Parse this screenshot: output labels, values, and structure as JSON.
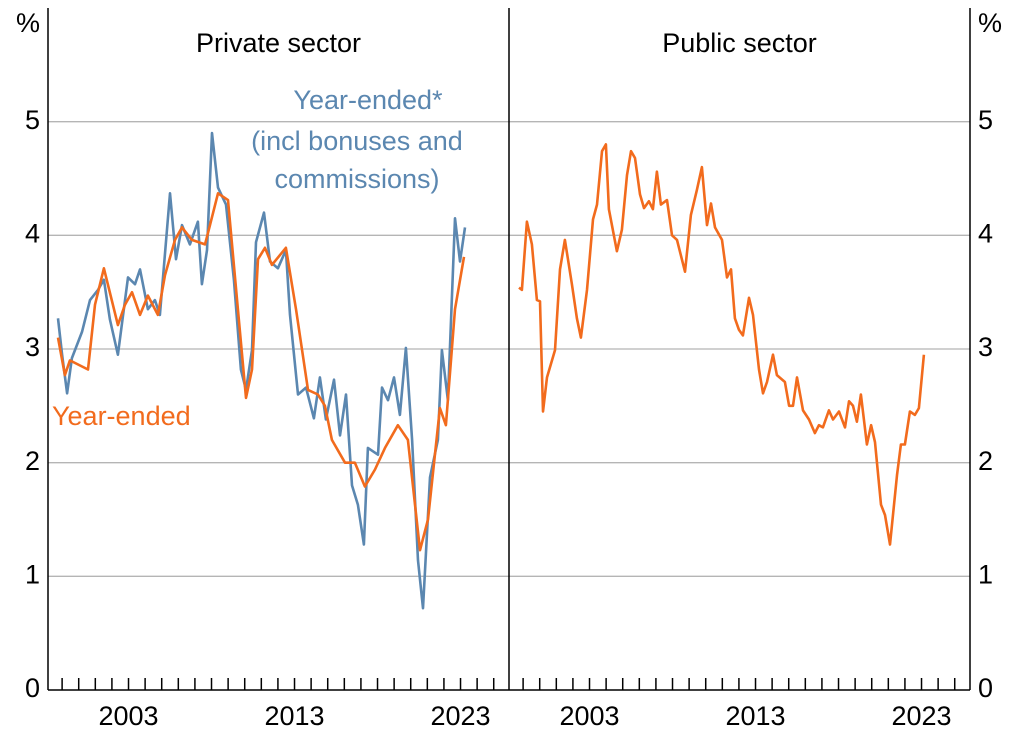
{
  "chart_data": [
    {
      "type": "line",
      "title": "Private sector",
      "y_label": "%",
      "yaxis_side": "left",
      "grid": true,
      "xlim": [
        1998.15,
        2025.92
      ],
      "xticks": [
        2003,
        2013,
        2023
      ],
      "xminorticks": [
        1999,
        2000,
        2001,
        2002,
        2003,
        2004,
        2005,
        2006,
        2007,
        2008,
        2009,
        2010,
        2011,
        2012,
        2013,
        2014,
        2015,
        2016,
        2017,
        2018,
        2019,
        2020,
        2021,
        2022,
        2023,
        2024,
        2025
      ],
      "ylim": [
        0,
        6
      ],
      "yticks": [
        0,
        1,
        2,
        3,
        4,
        5
      ],
      "annotations": [
        "(incl bonuses and",
        "commissions)"
      ],
      "series": [
        {
          "name": "Year-ended*",
          "color": "#5b87b0",
          "x": [
            1998.75,
            1999.0,
            1999.3,
            1999.59,
            2000.2,
            2000.68,
            2001.16,
            2001.52,
            2001.88,
            2002.36,
            2002.97,
            2003.39,
            2003.69,
            2004.17,
            2004.59,
            2004.89,
            2005.5,
            2005.86,
            2006.22,
            2006.7,
            2007.18,
            2007.42,
            2007.73,
            2008.03,
            2008.39,
            2008.87,
            2009.35,
            2009.77,
            2010.08,
            2010.44,
            2010.68,
            2011.16,
            2011.52,
            2012.0,
            2012.48,
            2012.73,
            2013.21,
            2013.69,
            2014.17,
            2014.53,
            2014.89,
            2015.38,
            2015.74,
            2016.1,
            2016.46,
            2016.82,
            2017.18,
            2017.42,
            2018.03,
            2018.27,
            2018.63,
            2018.99,
            2019.35,
            2019.71,
            2020.08,
            2020.44,
            2020.74,
            2021.16,
            2021.64,
            2021.88,
            2022.24,
            2022.67,
            2022.97,
            2023.27
          ],
          "values": [
            3.27,
            2.95,
            2.61,
            2.92,
            3.15,
            3.43,
            3.52,
            3.61,
            3.26,
            2.95,
            3.63,
            3.57,
            3.7,
            3.35,
            3.43,
            3.3,
            4.37,
            3.79,
            4.09,
            3.92,
            4.12,
            3.57,
            3.87,
            4.9,
            4.42,
            4.27,
            3.61,
            2.82,
            2.64,
            2.99,
            3.94,
            4.2,
            3.77,
            3.71,
            3.87,
            3.3,
            2.6,
            2.66,
            2.39,
            2.75,
            2.38,
            2.73,
            2.24,
            2.6,
            1.8,
            1.63,
            1.28,
            2.13,
            2.07,
            2.66,
            2.55,
            2.75,
            2.42,
            3.01,
            2.2,
            1.14,
            0.72,
            1.87,
            2.2,
            2.99,
            2.55,
            4.15,
            3.77,
            4.07
          ]
        },
        {
          "name": "Year-ended",
          "color": "#f26b1d",
          "x": [
            1998.75,
            1999.17,
            1999.47,
            2000.56,
            2000.98,
            2001.52,
            2002.36,
            2002.79,
            2003.21,
            2003.69,
            2004.17,
            2004.77,
            2005.2,
            2005.8,
            2006.22,
            2006.82,
            2007.61,
            2007.91,
            2008.39,
            2008.99,
            2009.59,
            2010.08,
            2010.44,
            2010.8,
            2011.22,
            2011.64,
            2012.48,
            2013.09,
            2013.81,
            2014.41,
            2014.83,
            2015.25,
            2016.04,
            2016.64,
            2017.24,
            2017.85,
            2018.45,
            2019.23,
            2019.83,
            2020.56,
            2021.04,
            2021.76,
            2022.12,
            2022.67,
            2023.21
          ],
          "values": [
            3.1,
            2.77,
            2.9,
            2.82,
            3.39,
            3.71,
            3.21,
            3.39,
            3.5,
            3.3,
            3.47,
            3.3,
            3.65,
            3.96,
            4.07,
            3.96,
            3.92,
            4.09,
            4.37,
            4.31,
            3.35,
            2.57,
            2.82,
            3.79,
            3.89,
            3.74,
            3.89,
            3.35,
            2.64,
            2.6,
            2.5,
            2.2,
            2.0,
            2.0,
            1.79,
            1.94,
            2.13,
            2.33,
            2.2,
            1.23,
            1.5,
            2.48,
            2.33,
            3.35,
            3.81
          ]
        }
      ]
    },
    {
      "type": "line",
      "title": "Public sector",
      "y_label": "%",
      "yaxis_side": "right",
      "grid": true,
      "xlim": [
        1998.15,
        2025.92
      ],
      "xticks": [
        2003,
        2013,
        2023
      ],
      "xminorticks": [
        1999,
        2000,
        2001,
        2002,
        2003,
        2004,
        2005,
        2006,
        2007,
        2008,
        2009,
        2010,
        2011,
        2012,
        2013,
        2014,
        2015,
        2016,
        2017,
        2018,
        2019,
        2020,
        2021,
        2022,
        2023,
        2024,
        2025
      ],
      "ylim": [
        0,
        6
      ],
      "yticks": [
        0,
        1,
        2,
        3,
        4,
        5
      ],
      "series": [
        {
          "color": "#f26b1d",
          "x": [
            1998.75,
            1998.93,
            1999.23,
            1999.53,
            1999.83,
            2000.02,
            2000.2,
            2000.44,
            2000.92,
            2001.22,
            2001.52,
            2001.94,
            2002.24,
            2002.48,
            2002.85,
            2003.21,
            2003.45,
            2003.75,
            2003.99,
            2004.17,
            2004.65,
            2004.95,
            2005.26,
            2005.5,
            2005.74,
            2006.04,
            2006.28,
            2006.58,
            2006.82,
            2007.06,
            2007.3,
            2007.67,
            2007.97,
            2008.27,
            2008.75,
            2009.11,
            2009.47,
            2009.77,
            2010.08,
            2010.32,
            2010.56,
            2010.98,
            2011.28,
            2011.52,
            2011.76,
            2012.0,
            2012.24,
            2012.61,
            2012.85,
            2013.21,
            2013.45,
            2013.69,
            2014.05,
            2014.29,
            2014.77,
            2015.02,
            2015.26,
            2015.5,
            2015.86,
            2016.22,
            2016.58,
            2016.82,
            2017.06,
            2017.42,
            2017.67,
            2018.03,
            2018.39,
            2018.63,
            2018.87,
            2019.11,
            2019.35,
            2019.71,
            2019.96,
            2020.2,
            2020.56,
            2020.8,
            2021.1,
            2021.52,
            2021.76,
            2022.0,
            2022.3,
            2022.6,
            2022.84,
            2023.14
          ],
          "values": [
            3.54,
            3.52,
            4.12,
            3.92,
            3.43,
            3.42,
            2.45,
            2.75,
            2.99,
            3.7,
            3.96,
            3.57,
            3.27,
            3.1,
            3.52,
            4.14,
            4.27,
            4.74,
            4.8,
            4.23,
            3.86,
            4.05,
            4.53,
            4.74,
            4.68,
            4.36,
            4.24,
            4.3,
            4.23,
            4.56,
            4.27,
            4.31,
            4.0,
            3.96,
            3.68,
            4.18,
            4.4,
            4.6,
            4.09,
            4.28,
            4.07,
            3.96,
            3.63,
            3.7,
            3.27,
            3.17,
            3.12,
            3.45,
            3.3,
            2.82,
            2.61,
            2.71,
            2.95,
            2.77,
            2.71,
            2.5,
            2.5,
            2.75,
            2.46,
            2.38,
            2.26,
            2.33,
            2.31,
            2.46,
            2.38,
            2.45,
            2.31,
            2.54,
            2.5,
            2.36,
            2.6,
            2.16,
            2.33,
            2.18,
            1.63,
            1.54,
            1.28,
            1.89,
            2.16,
            2.16,
            2.45,
            2.42,
            2.48,
            2.95
          ]
        }
      ]
    }
  ]
}
